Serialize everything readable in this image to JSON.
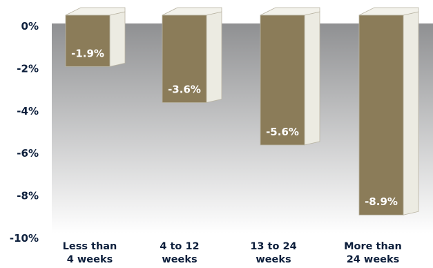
{
  "chart_data": {
    "type": "bar",
    "categories": [
      [
        "Less than",
        "4 weeks"
      ],
      [
        "4 to 12",
        "weeks"
      ],
      [
        "13 to 24",
        "weeks"
      ],
      [
        "More than",
        "24 weeks"
      ]
    ],
    "values": [
      -1.9,
      -3.6,
      -5.6,
      -8.9
    ],
    "data_labels": [
      "-1.9%",
      "-3.6%",
      "-5.6%",
      "-8.9%"
    ],
    "yticks": [
      0,
      -2,
      -4,
      -6,
      -8,
      -10
    ],
    "ytick_labels": [
      "0%",
      "-2%",
      "-4%",
      "-6%",
      "-8%",
      "-10%"
    ],
    "ylim": [
      -10,
      0
    ],
    "title": "",
    "xlabel": "",
    "ylabel": "",
    "grid": false,
    "legend": "none",
    "colors": {
      "bar_front": "#8b7c59",
      "bar_side": "#ecebe2",
      "bar_top": "#f2f1ea",
      "bar_edge": "#b8b3a2",
      "text": "#0d1f3c",
      "label": "#ffffff",
      "background_top": "#8f9092",
      "background_bottom": "#ffffff"
    }
  }
}
